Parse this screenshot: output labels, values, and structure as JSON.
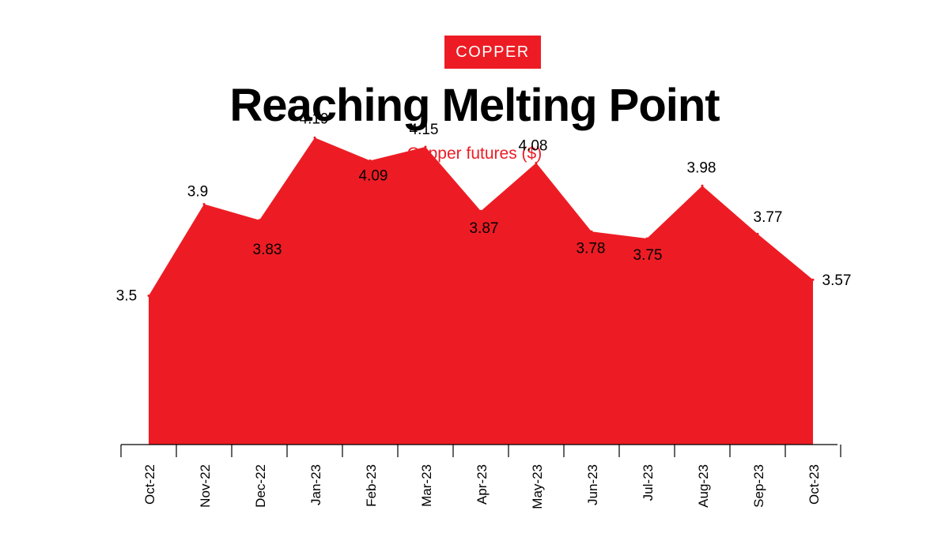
{
  "header": {
    "tag": "COPPER",
    "title": "Reaching Melting Point",
    "subtitle": "Copper futures ($)"
  },
  "colors": {
    "accent": "#ed1c24",
    "text": "#000000",
    "axis": "#000000",
    "background": "#ffffff"
  },
  "chart_data": {
    "type": "area",
    "title": "Reaching Melting Point",
    "subtitle": "Copper futures ($)",
    "categories": [
      "Oct-22",
      "Nov-22",
      "Dec-22",
      "Jan-23",
      "Feb-23",
      "Mar-23",
      "Apr-23",
      "May-23",
      "Jun-23",
      "Jul-23",
      "Aug-23",
      "Sep-23",
      "Oct-23"
    ],
    "values": [
      3.5,
      3.9,
      3.83,
      4.19,
      4.09,
      4.15,
      3.87,
      4.08,
      3.78,
      3.75,
      3.98,
      3.77,
      3.57
    ],
    "data_labels": [
      "3.5",
      "3.9",
      "3.83",
      "4.19",
      "4.09",
      "4.15",
      "3.87",
      "4.08",
      "3.78",
      "3.75",
      "3.98",
      "3.77",
      "3.57"
    ],
    "series": [
      {
        "values": [
          3.5,
          3.9,
          3.83,
          4.19,
          4.09,
          4.15,
          3.87,
          4.08,
          3.78,
          3.75,
          3.98,
          3.77,
          3.57
        ]
      }
    ],
    "xlabel": "",
    "ylabel": "",
    "grid": false,
    "legend": "none"
  }
}
